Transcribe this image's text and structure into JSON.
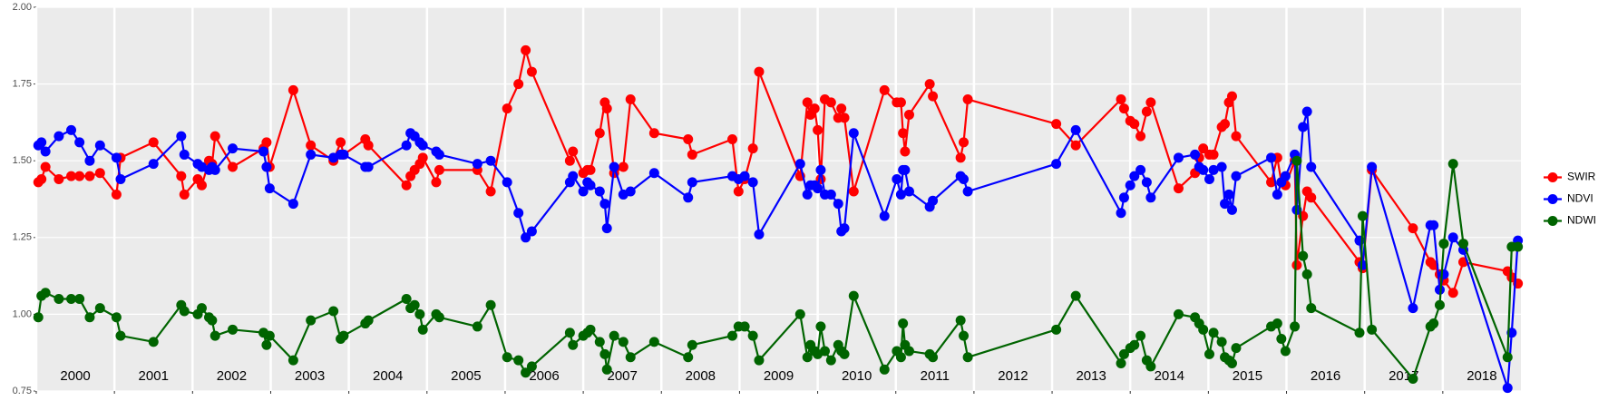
{
  "chart_data": {
    "type": "line",
    "x": [
      2000.026,
      2000.066,
      2000.118,
      2000.289,
      2000.447,
      2000.553,
      2000.684,
      2000.816,
      2001.026,
      2001.079,
      2001.5,
      2001.855,
      2001.895,
      2002.066,
      2002.118,
      2002.211,
      2002.25,
      2002.289,
      2002.513,
      2002.908,
      2002.947,
      2002.987,
      2003.289,
      2003.513,
      2003.803,
      2003.895,
      2003.934,
      2004.211,
      2004.25,
      2004.737,
      2004.789,
      2004.842,
      2004.908,
      2004.947,
      2005.118,
      2005.158,
      2005.645,
      2005.816,
      2006.026,
      2006.171,
      2006.263,
      2006.342,
      2006.829,
      2006.868,
      2007.0,
      2007.053,
      2007.092,
      2007.211,
      2007.276,
      2007.303,
      2007.395,
      2007.513,
      2007.605,
      2007.908,
      2008.342,
      2008.395,
      2008.908,
      2008.987,
      2009.066,
      2009.171,
      2009.25,
      2009.776,
      2009.868,
      2009.908,
      2009.961,
      2010.0,
      2010.039,
      2010.092,
      2010.171,
      2010.263,
      2010.303,
      2010.342,
      2010.461,
      2010.855,
      2011.013,
      2011.066,
      2011.092,
      2011.118,
      2011.171,
      2011.434,
      2011.474,
      2011.829,
      2011.868,
      2011.921,
      2013.053,
      2013.303,
      2013.882,
      2013.921,
      2014.0,
      2014.053,
      2014.132,
      2014.211,
      2014.263,
      2014.618,
      2014.829,
      2014.882,
      2014.934,
      2015.013,
      2015.066,
      2015.171,
      2015.211,
      2015.263,
      2015.303,
      2015.355,
      2015.803,
      2015.882,
      2015.934,
      2015.987,
      2016.105,
      2016.132,
      2016.211,
      2016.263,
      2016.316,
      2016.934,
      2016.974,
      2017.092,
      2017.618,
      2017.842,
      2017.882,
      2017.961,
      2018.013,
      2018.132,
      2018.263,
      2018.829,
      2018.882,
      2018.961
    ],
    "series": [
      {
        "name": "SWIR",
        "color": "#ff0000",
        "values": [
          1.43,
          1.44,
          1.48,
          1.44,
          1.45,
          1.45,
          1.45,
          1.46,
          1.39,
          1.51,
          1.56,
          1.45,
          1.39,
          1.44,
          1.42,
          1.5,
          1.49,
          1.58,
          1.48,
          1.54,
          1.56,
          1.48,
          1.73,
          1.55,
          1.5,
          1.56,
          1.52,
          1.57,
          1.55,
          1.42,
          1.45,
          1.47,
          1.49,
          1.51,
          1.43,
          1.47,
          1.47,
          1.4,
          1.67,
          1.75,
          1.86,
          1.79,
          1.5,
          1.53,
          1.46,
          1.47,
          1.47,
          1.59,
          1.69,
          1.67,
          1.46,
          1.48,
          1.7,
          1.59,
          1.57,
          1.52,
          1.57,
          1.4,
          1.44,
          1.54,
          1.79,
          1.45,
          1.69,
          1.65,
          1.67,
          1.6,
          1.44,
          1.7,
          1.69,
          1.64,
          1.67,
          1.64,
          1.4,
          1.73,
          1.69,
          1.69,
          1.59,
          1.53,
          1.65,
          1.75,
          1.71,
          1.51,
          1.56,
          1.7,
          1.62,
          1.55,
          1.7,
          1.67,
          1.63,
          1.62,
          1.58,
          1.66,
          1.69,
          1.41,
          1.46,
          1.51,
          1.54,
          1.52,
          1.52,
          1.61,
          1.62,
          1.69,
          1.71,
          1.58,
          1.43,
          1.51,
          1.43,
          1.42,
          1.5,
          1.16,
          1.32,
          1.4,
          1.38,
          1.17,
          1.15,
          1.47,
          1.28,
          1.17,
          1.16,
          1.13,
          1.11,
          1.07,
          1.17,
          1.14,
          1.12,
          1.1
        ]
      },
      {
        "name": "NDVI",
        "color": "#0000ff",
        "values": [
          1.55,
          1.56,
          1.53,
          1.58,
          1.6,
          1.56,
          1.5,
          1.55,
          1.51,
          1.44,
          1.49,
          1.58,
          1.52,
          1.49,
          1.48,
          1.47,
          1.48,
          1.47,
          1.54,
          1.53,
          1.48,
          1.41,
          1.36,
          1.52,
          1.51,
          1.52,
          1.52,
          1.48,
          1.48,
          1.55,
          1.59,
          1.58,
          1.56,
          1.55,
          1.53,
          1.52,
          1.49,
          1.5,
          1.43,
          1.33,
          1.25,
          1.27,
          1.43,
          1.45,
          1.4,
          1.43,
          1.42,
          1.4,
          1.36,
          1.28,
          1.48,
          1.39,
          1.4,
          1.46,
          1.38,
          1.43,
          1.45,
          1.44,
          1.45,
          1.43,
          1.26,
          1.49,
          1.39,
          1.42,
          1.42,
          1.41,
          1.47,
          1.39,
          1.39,
          1.36,
          1.27,
          1.28,
          1.59,
          1.32,
          1.44,
          1.39,
          1.47,
          1.47,
          1.4,
          1.35,
          1.37,
          1.45,
          1.44,
          1.4,
          1.49,
          1.6,
          1.33,
          1.38,
          1.42,
          1.45,
          1.47,
          1.43,
          1.38,
          1.51,
          1.52,
          1.48,
          1.47,
          1.44,
          1.47,
          1.48,
          1.36,
          1.39,
          1.34,
          1.45,
          1.51,
          1.39,
          1.43,
          1.45,
          1.52,
          1.34,
          1.61,
          1.66,
          1.48,
          1.24,
          1.16,
          1.48,
          1.02,
          1.29,
          1.29,
          1.08,
          1.13,
          1.25,
          1.21,
          0.76,
          0.94,
          1.24
        ]
      },
      {
        "name": "NDWI",
        "color": "#006400",
        "values": [
          0.99,
          1.06,
          1.07,
          1.05,
          1.05,
          1.05,
          0.99,
          1.02,
          0.99,
          0.93,
          0.91,
          1.03,
          1.01,
          1.0,
          1.02,
          0.99,
          0.98,
          0.93,
          0.95,
          0.94,
          0.9,
          0.93,
          0.85,
          0.98,
          1.01,
          0.92,
          0.93,
          0.97,
          0.98,
          1.05,
          1.02,
          1.03,
          1.0,
          0.95,
          1.0,
          0.99,
          0.96,
          1.03,
          0.86,
          0.85,
          0.81,
          0.83,
          0.94,
          0.9,
          0.93,
          0.94,
          0.95,
          0.91,
          0.87,
          0.82,
          0.93,
          0.91,
          0.86,
          0.91,
          0.86,
          0.9,
          0.93,
          0.96,
          0.96,
          0.93,
          0.85,
          1.0,
          0.86,
          0.9,
          0.88,
          0.87,
          0.96,
          0.88,
          0.85,
          0.9,
          0.88,
          0.87,
          1.06,
          0.82,
          0.88,
          0.86,
          0.97,
          0.9,
          0.88,
          0.87,
          0.86,
          0.98,
          0.93,
          0.86,
          0.95,
          1.06,
          0.84,
          0.87,
          0.89,
          0.9,
          0.93,
          0.85,
          0.83,
          1.0,
          0.99,
          0.97,
          0.95,
          0.87,
          0.94,
          0.91,
          0.86,
          0.85,
          0.84,
          0.89,
          0.96,
          0.97,
          0.92,
          0.88,
          0.96,
          1.5,
          1.19,
          1.13,
          1.02,
          0.94,
          1.32,
          0.95,
          0.79,
          0.96,
          0.97,
          1.03,
          1.23,
          1.49,
          1.23,
          0.86,
          1.22,
          1.22
        ]
      }
    ],
    "xlim": [
      2000,
      2019
    ],
    "xticks": [
      2000,
      2001,
      2002,
      2003,
      2004,
      2005,
      2006,
      2007,
      2008,
      2009,
      2010,
      2011,
      2012,
      2013,
      2014,
      2015,
      2016,
      2017,
      2018
    ],
    "ylim": [
      0.75,
      2.0
    ],
    "yticks": [
      {
        "value": 0.75,
        "label": "0.75"
      },
      {
        "value": 1.0,
        "label": "1.00"
      },
      {
        "value": 1.25,
        "label": "1.25"
      },
      {
        "value": 1.5,
        "label": "1.50"
      },
      {
        "value": 1.75,
        "label": "1.75"
      },
      {
        "value": 2.0,
        "label": "2.00"
      }
    ],
    "grid": true,
    "legend": "right"
  }
}
